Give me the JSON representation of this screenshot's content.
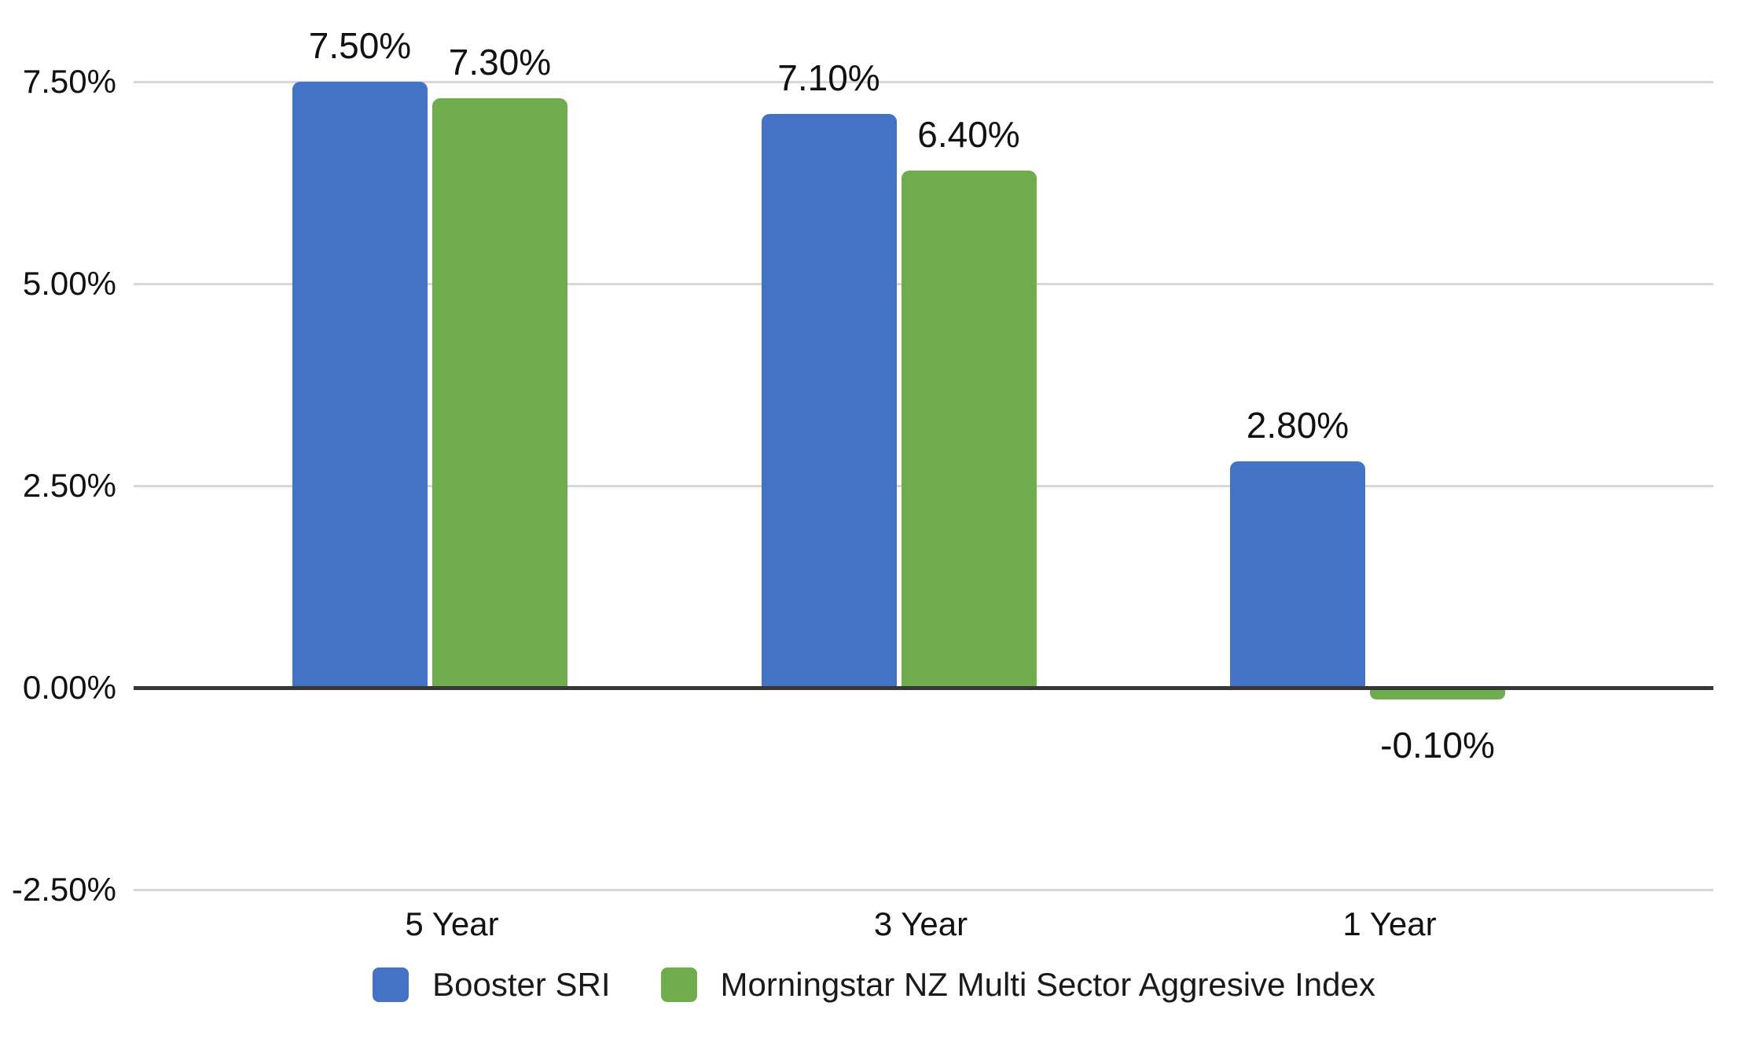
{
  "chart_data": {
    "type": "bar",
    "title": "",
    "categories": [
      "5 Year",
      "3 Year",
      "1 Year"
    ],
    "series": [
      {
        "name": "Booster SRI",
        "color": "#4472C4",
        "values": [
          7.5,
          7.1,
          2.8
        ],
        "data_labels": [
          "7.50%",
          "7.10%",
          "2.80%"
        ]
      },
      {
        "name": "Morningstar NZ Multi Sector Aggresive Index",
        "color": "#6FAC4D",
        "values": [
          7.3,
          6.4,
          -0.1
        ],
        "data_labels": [
          "7.30%",
          "6.40%",
          "-0.10%"
        ]
      }
    ],
    "y_axis": {
      "min": -2.5,
      "max": 7.5,
      "step": 2.5,
      "ticks": [
        7.5,
        5.0,
        2.5,
        0.0,
        -2.5
      ],
      "tick_labels": [
        "7.50%",
        "5.00%",
        "2.50%",
        "0.00%",
        "-2.50%"
      ]
    },
    "grid": true,
    "legend_position": "bottom",
    "colors": {
      "gridline": "#D8D8D8",
      "zero_line": "#373737",
      "text": "#111111",
      "background": "#FFFFFF"
    }
  }
}
